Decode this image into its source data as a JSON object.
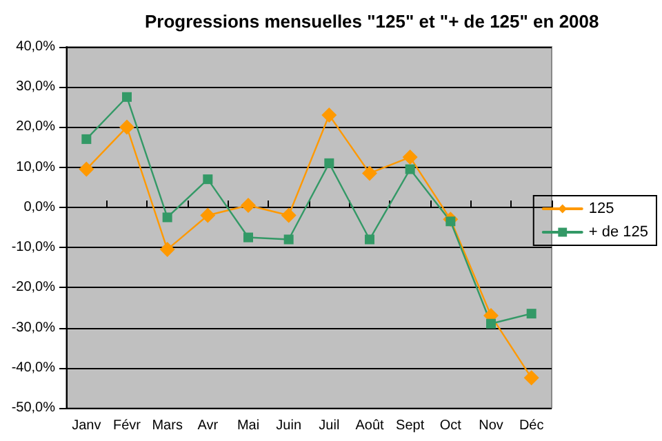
{
  "chart_data": {
    "type": "line",
    "title": "Progressions mensuelles \"125\" et \"+ de 125\" en 2008",
    "categories": [
      "Janv",
      "Févr",
      "Mars",
      "Avr",
      "Mai",
      "Juin",
      "Juil",
      "Août",
      "Sept",
      "Oct",
      "Nov",
      "Déc"
    ],
    "series": [
      {
        "name": "125",
        "color": "#ff9900",
        "marker": "diamond",
        "values": [
          9.5,
          20,
          -10.5,
          -2,
          0.5,
          -2,
          23,
          8.5,
          12.5,
          -3,
          -27,
          -42.5
        ]
      },
      {
        "name": "+ de 125",
        "color": "#339966",
        "marker": "square",
        "values": [
          17,
          27.5,
          -2.5,
          7,
          -7.5,
          -8,
          11,
          -8,
          9.5,
          -3.5,
          -29,
          -26.5
        ]
      }
    ],
    "ylim": [
      -50,
      40
    ],
    "yticks": [
      {
        "value": -50,
        "label": "-50,0%"
      },
      {
        "value": -40,
        "label": "-40,0%"
      },
      {
        "value": -30,
        "label": "-30,0%"
      },
      {
        "value": -20,
        "label": "-20,0%"
      },
      {
        "value": -10,
        "label": "-10,0%"
      },
      {
        "value": 0,
        "label": "0,0%"
      },
      {
        "value": 10,
        "label": "10,0%"
      },
      {
        "value": 20,
        "label": "20,0%"
      },
      {
        "value": 30,
        "label": "30,0%"
      },
      {
        "value": 40,
        "label": "40,0%"
      }
    ],
    "grid": "y",
    "legend": "right",
    "line_style": "solid"
  }
}
